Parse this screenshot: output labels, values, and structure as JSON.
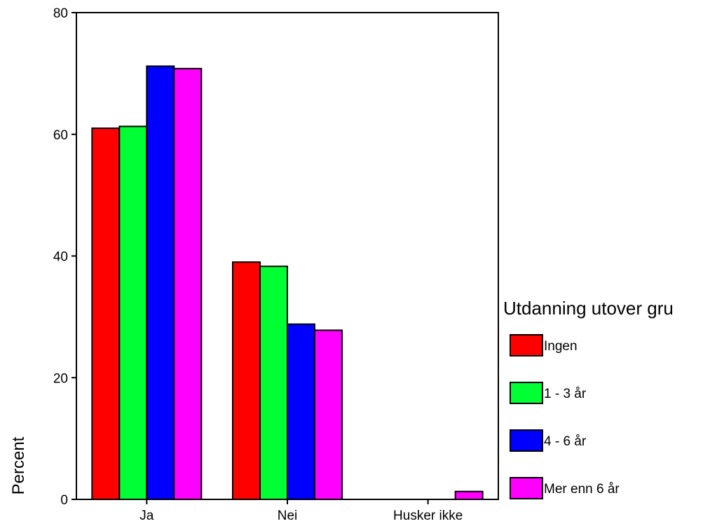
{
  "chart_data": {
    "type": "bar",
    "categories": [
      "Ja",
      "Nei",
      "Husker ikke"
    ],
    "series": [
      {
        "name": "Ingen",
        "color": "#ff0000",
        "values": [
          61.0,
          39.0,
          0.0
        ]
      },
      {
        "name": "1 - 3 år",
        "color": "#00ff33",
        "values": [
          61.3,
          38.3,
          0.0
        ]
      },
      {
        "name": "4 - 6 år",
        "color": "#0000ff",
        "values": [
          71.2,
          28.8,
          0.0
        ]
      },
      {
        "name": "Mer enn 6 år",
        "color": "#ff00ff",
        "values": [
          70.8,
          27.8,
          1.3
        ]
      }
    ],
    "ylabel": "Percent",
    "xlabel": "",
    "ylim": [
      0,
      80
    ],
    "yticks": [
      "0",
      "20",
      "40",
      "60",
      "80"
    ],
    "legend_title": "Utdanning utover gru",
    "legend_position": "right",
    "grid": false
  }
}
